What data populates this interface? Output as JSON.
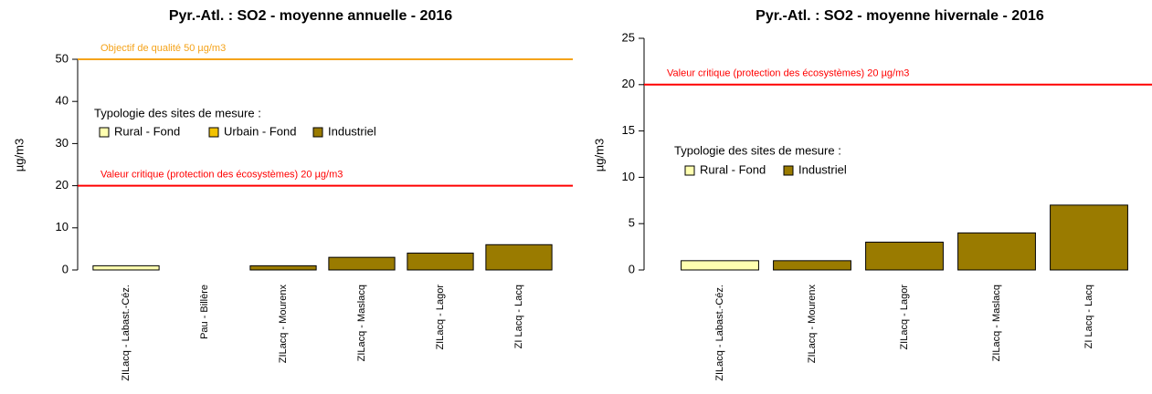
{
  "chart_data": [
    {
      "type": "bar",
      "title": "Pyr.-Atl. : SO2 - moyenne annuelle - 2016",
      "y_label": "µg/m3",
      "categories": [
        "ZILacq - Labast.-Céz.",
        "Pau - Billère",
        "ZILacq - Mourenx",
        "ZILacq - Maslacq",
        "ZILacq - Lagor",
        "ZI Lacq - Lacq"
      ],
      "values": [
        1,
        0,
        1,
        3,
        4,
        6
      ],
      "colors": [
        "#ffffb0",
        "#f2c200",
        "#9a7b00",
        "#9a7b00",
        "#9a7b00",
        "#9a7b00"
      ],
      "ylim": [
        0,
        50
      ],
      "yticks": [
        0,
        10,
        20,
        30,
        40,
        50
      ],
      "reference_lines": [
        {
          "label": "Objectif de qualité 50 µg/m3",
          "value": 50,
          "color": "#f5a31a"
        },
        {
          "label": "Valeur critique (protection des écosystèmes) 20 µg/m3",
          "value": 20,
          "color": "#ff0000"
        }
      ],
      "legend": {
        "title": "Typologie des sites de mesure :",
        "entries": [
          {
            "name": "Rural - Fond",
            "color": "#ffffb0"
          },
          {
            "name": "Urbain - Fond",
            "color": "#f2c200"
          },
          {
            "name": "Industriel",
            "color": "#9a7b00"
          }
        ]
      }
    },
    {
      "type": "bar",
      "title": "Pyr.-Atl. : SO2 - moyenne hivernale - 2016",
      "y_label": "µg/m3",
      "categories": [
        "ZILacq - Labast.-Céz.",
        "ZILacq - Mourenx",
        "ZILacq - Lagor",
        "ZILacq - Maslacq",
        "ZI Lacq - Lacq"
      ],
      "values": [
        1,
        1,
        3,
        4,
        7
      ],
      "colors": [
        "#ffffb0",
        "#9a7b00",
        "#9a7b00",
        "#9a7b00",
        "#9a7b00"
      ],
      "ylim": [
        0,
        25
      ],
      "yticks": [
        0,
        5,
        10,
        15,
        20,
        25
      ],
      "reference_lines": [
        {
          "label": "Valeur critique (protection des écosystèmes) 20 µg/m3",
          "value": 20,
          "color": "#ff0000"
        }
      ],
      "legend": {
        "title": "Typologie des sites de mesure :",
        "entries": [
          {
            "name": "Rural - Fond",
            "color": "#ffffb0"
          },
          {
            "name": "Industriel",
            "color": "#9a7b00"
          }
        ]
      }
    }
  ]
}
